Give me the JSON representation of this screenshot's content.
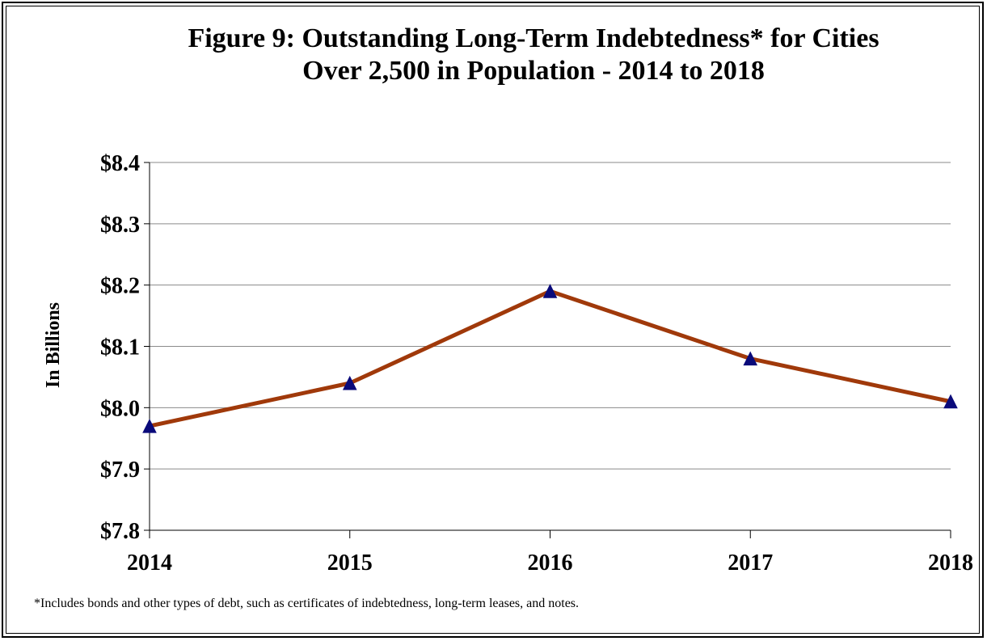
{
  "chart_data": {
    "type": "line",
    "title": "Figure 9:  Outstanding Long-Term Indebtedness* for Cities",
    "subtitle": "Over 2,500 in Population - 2014 to 2018",
    "xlabel": "",
    "ylabel": "In Billions",
    "categories": [
      "2014",
      "2015",
      "2016",
      "2017",
      "2018"
    ],
    "series": [
      {
        "values": [
          7.97,
          8.04,
          8.19,
          8.08,
          8.01
        ]
      }
    ],
    "ylim": [
      7.8,
      8.4
    ],
    "yticks": [
      {
        "value": 7.8,
        "label": "$7.8"
      },
      {
        "value": 7.9,
        "label": "$7.9"
      },
      {
        "value": 8.0,
        "label": "$8.0"
      },
      {
        "value": 8.1,
        "label": "$8.1"
      },
      {
        "value": 8.2,
        "label": "$8.2"
      },
      {
        "value": 8.3,
        "label": "$8.3"
      },
      {
        "value": 8.4,
        "label": "$8.4"
      }
    ],
    "grid": true,
    "legend": "none",
    "line_color": "#A0390A",
    "marker": "triangle",
    "marker_color": "#0A0A7A"
  },
  "footnote": "*Includes bonds and other types of debt, such as certificates of indebtedness, long-term leases, and notes."
}
